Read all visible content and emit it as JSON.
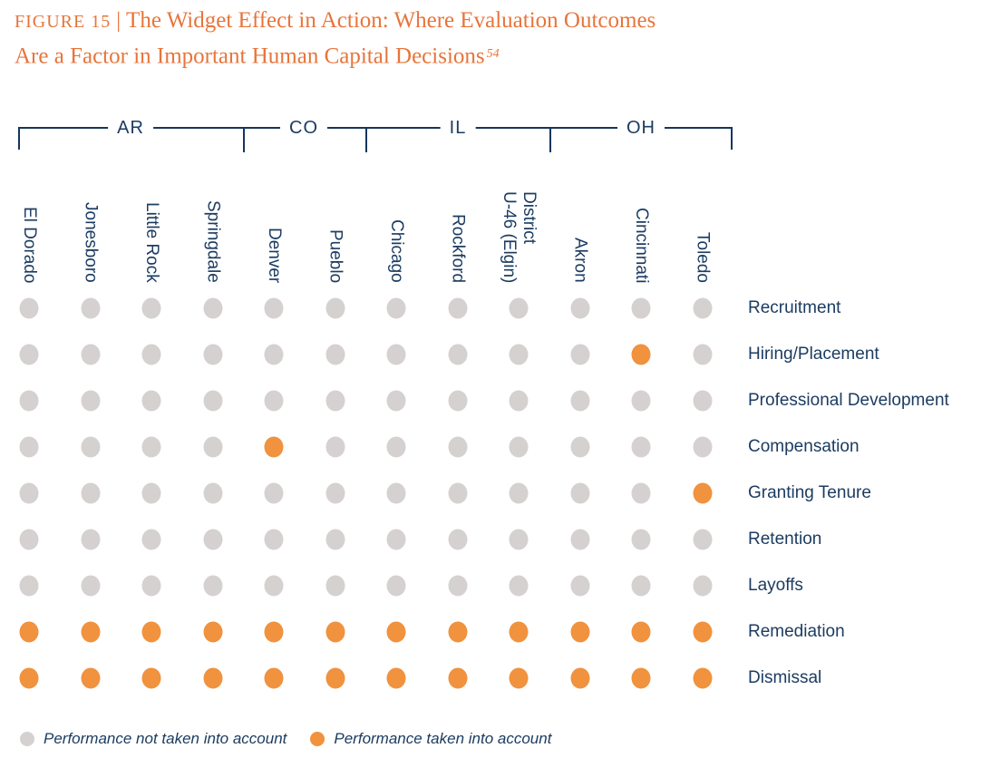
{
  "title": {
    "figure_label": "FIGURE 15",
    "separator": "|",
    "line1": "The Widget Effect in Action: Where Evaluation Outcomes",
    "line2": "Are a Factor in Important Human Capital Decisions",
    "footnote": "54"
  },
  "colors": {
    "title_orange": "#e8743a",
    "navy_text": "#1c3c61",
    "bracket_line": "#16365c",
    "dot_gray": "#d5d1d0",
    "dot_orange": "#f0923e"
  },
  "chart_data": {
    "type": "heatmap",
    "subtype": "dot-matrix",
    "state_groups": [
      {
        "label": "AR",
        "cities": [
          "El Dorado",
          "Jonesboro",
          "Little Rock",
          "Springdale"
        ]
      },
      {
        "label": "CO",
        "cities": [
          "Denver",
          "Pueblo"
        ]
      },
      {
        "label": "IL",
        "cities": [
          "Chicago",
          "Rockford",
          "District\nU-46 (Elgin)"
        ]
      },
      {
        "label": "OH",
        "cities": [
          "Akron",
          "Cincinnati",
          "Toledo"
        ]
      }
    ],
    "columns": [
      "El Dorado",
      "Jonesboro",
      "Little Rock",
      "Springdale",
      "Denver",
      "Pueblo",
      "Chicago",
      "Rockford",
      "District U-46 (Elgin)",
      "Akron",
      "Cincinnati",
      "Toledo"
    ],
    "rows": [
      "Recruitment",
      "Hiring/Placement",
      "Professional Development",
      "Compensation",
      "Granting Tenure",
      "Retention",
      "Layoffs",
      "Remediation",
      "Dismissal"
    ],
    "matrix": [
      [
        0,
        0,
        0,
        0,
        0,
        0,
        0,
        0,
        0,
        0,
        0,
        0
      ],
      [
        0,
        0,
        0,
        0,
        0,
        0,
        0,
        0,
        0,
        0,
        1,
        0
      ],
      [
        0,
        0,
        0,
        0,
        0,
        0,
        0,
        0,
        0,
        0,
        0,
        0
      ],
      [
        0,
        0,
        0,
        0,
        1,
        0,
        0,
        0,
        0,
        0,
        0,
        0
      ],
      [
        0,
        0,
        0,
        0,
        0,
        0,
        0,
        0,
        0,
        0,
        0,
        1
      ],
      [
        0,
        0,
        0,
        0,
        0,
        0,
        0,
        0,
        0,
        0,
        0,
        0
      ],
      [
        0,
        0,
        0,
        0,
        0,
        0,
        0,
        0,
        0,
        0,
        0,
        0
      ],
      [
        1,
        1,
        1,
        1,
        1,
        1,
        1,
        1,
        1,
        1,
        1,
        1
      ],
      [
        1,
        1,
        1,
        1,
        1,
        1,
        1,
        1,
        1,
        1,
        1,
        1
      ]
    ],
    "value_meaning": {
      "0": "Performance not taken into account",
      "1": "Performance taken into account"
    },
    "legend": [
      {
        "color": "#d5d1d0",
        "label": "Performance not taken into account"
      },
      {
        "color": "#f0923e",
        "label": "Performance taken into account"
      }
    ],
    "legend_position": "bottom"
  }
}
